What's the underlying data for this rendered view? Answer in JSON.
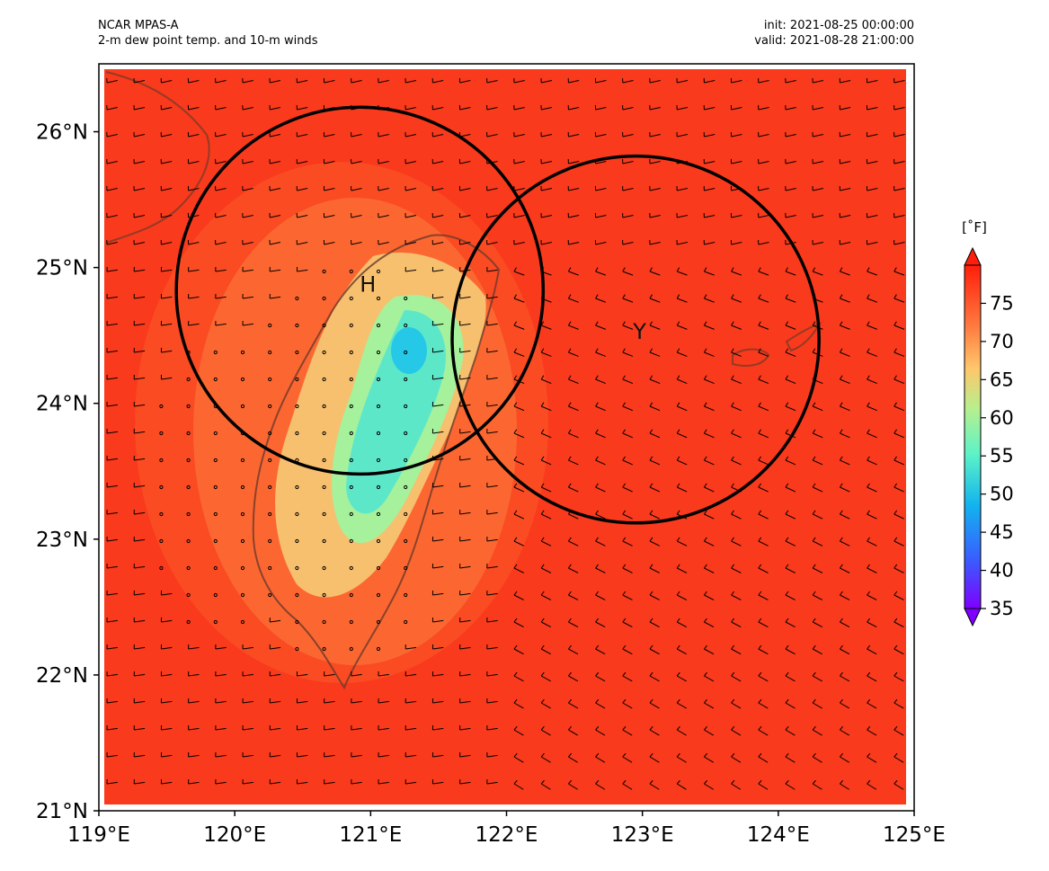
{
  "header": {
    "model": "NCAR MPAS-A",
    "field": "2-m dew point temp. and 10-m winds",
    "init": "init: 2021-08-25 00:00:00",
    "valid": "valid: 2021-08-28 21:00:00"
  },
  "map": {
    "lon_range": [
      119,
      125
    ],
    "lat_range": [
      21,
      26.5
    ],
    "lon_ticks": [
      "119°E",
      "120°E",
      "121°E",
      "122°E",
      "123°E",
      "124°E",
      "125°E"
    ],
    "lat_ticks": [
      "21°N",
      "22°N",
      "23°N",
      "24°N",
      "25°N",
      "26°N"
    ],
    "background_color": "#f93a1c",
    "features": [
      {
        "label": "H",
        "lon": 120.98,
        "lat": 24.87
      },
      {
        "label": "Y",
        "lon": 122.98,
        "lat": 24.52
      }
    ],
    "circles": [
      {
        "center_lon": 120.92,
        "center_lat": 24.83,
        "radius_deg": 1.35
      },
      {
        "center_lon": 122.95,
        "center_lat": 24.47,
        "radius_deg": 1.35
      }
    ]
  },
  "colorbar": {
    "unit": "[˚F]",
    "ticks": [
      "35",
      "40",
      "45",
      "50",
      "55",
      "60",
      "65",
      "70",
      "75"
    ],
    "range": [
      35,
      80
    ]
  }
}
